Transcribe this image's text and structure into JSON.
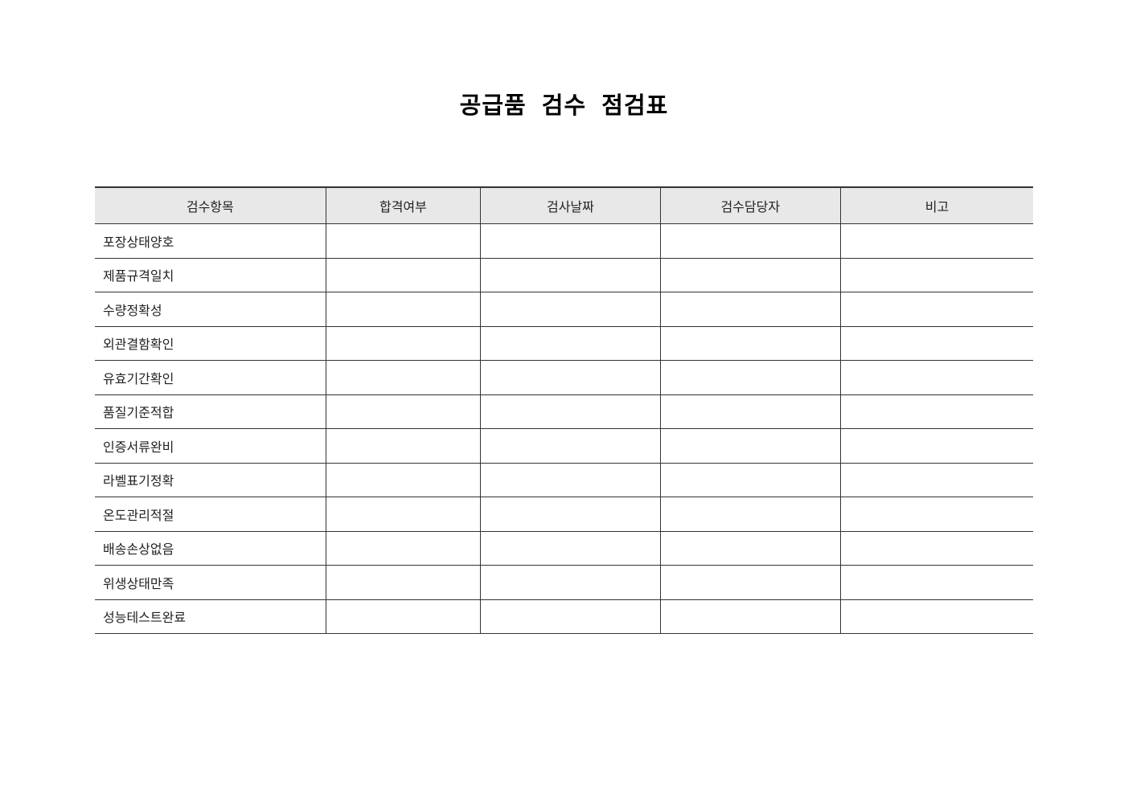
{
  "title": "공급품 검수 점검표",
  "columns": [
    "검수항목",
    "합격여부",
    "검사날짜",
    "검수담당자",
    "비고"
  ],
  "rows": [
    "포장상태양호",
    "제품규격일치",
    "수량정확성",
    "외관결함확인",
    "유효기간확인",
    "품질기준적합",
    "인증서류완비",
    "라벨표기정확",
    "온도관리적절",
    "배송손상없음",
    "위생상태만족",
    "성능테스트완료"
  ]
}
